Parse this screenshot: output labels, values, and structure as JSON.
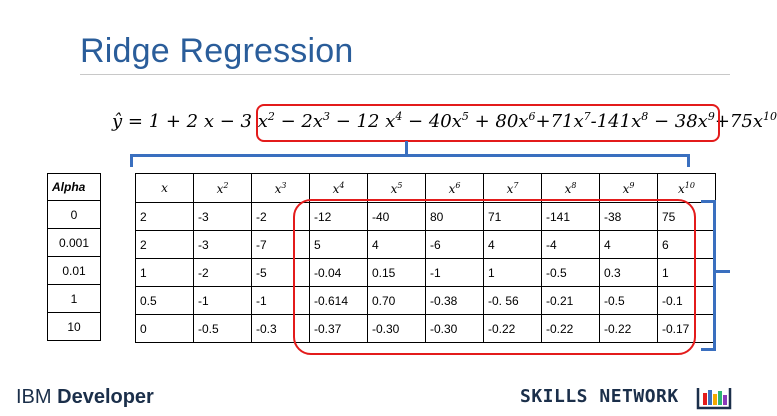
{
  "title": "Ridge Regression",
  "equation": {
    "lhs": "ŷ",
    "terms": [
      {
        "text": " = 1 + 2 x − 3 x",
        "pow": "2"
      },
      {
        "text": " − 2x",
        "pow": "3"
      },
      {
        "text": " − 12 x",
        "pow": "4"
      },
      {
        "text": " − 40x",
        "pow": "5"
      },
      {
        "text": " + 80x",
        "pow": "6"
      },
      {
        "text": "+71x",
        "pow": "7"
      },
      {
        "text": "-141x",
        "pow": "8"
      },
      {
        "text": " − 38x",
        "pow": "9"
      },
      {
        "text": "+75x",
        "pow": "10"
      }
    ]
  },
  "alpha_table": {
    "header": "Alpha",
    "values": [
      "0",
      "0.001",
      "0.01",
      "1",
      "10"
    ]
  },
  "coef_table": {
    "headers": [
      {
        "base": "x",
        "pow": ""
      },
      {
        "base": "x",
        "pow": "2"
      },
      {
        "base": "x",
        "pow": "3"
      },
      {
        "base": "x",
        "pow": "4"
      },
      {
        "base": "x",
        "pow": "5"
      },
      {
        "base": "x",
        "pow": "6"
      },
      {
        "base": "x",
        "pow": "7"
      },
      {
        "base": "x",
        "pow": "8"
      },
      {
        "base": "x",
        "pow": "9"
      },
      {
        "base": "x",
        "pow": "10"
      }
    ],
    "rows": [
      [
        "2",
        "-3",
        "-2",
        "-12",
        "-40",
        "80",
        "71",
        "-141",
        "-38",
        "75"
      ],
      [
        "2",
        "-3",
        "-7",
        "5",
        "4",
        "-6",
        "4",
        "-4",
        "4",
        "6"
      ],
      [
        "1",
        "-2",
        "-5",
        "-0.04",
        "0.15",
        "-1",
        "1",
        "-0.5",
        "0.3",
        "1"
      ],
      [
        "0.5",
        "-1",
        "-1",
        "-0.614",
        "0.70",
        "-0.38",
        "-0. 56",
        "-0.21",
        "-0.5",
        "-0.1"
      ],
      [
        "0",
        "-0.5",
        "-0.3",
        "-0.37",
        "-0.30",
        "-0.30",
        "-0.22",
        "-0.22",
        "-0.22",
        "-0.17"
      ]
    ]
  },
  "footer": {
    "ibm_prefix": "IBM",
    "ibm_bold": "Developer",
    "skills": "SKILLS NETWORK"
  },
  "colors": {
    "title": "#2a5d9a",
    "highlight": "#e31b1b",
    "bracket": "#3a6fbf"
  }
}
